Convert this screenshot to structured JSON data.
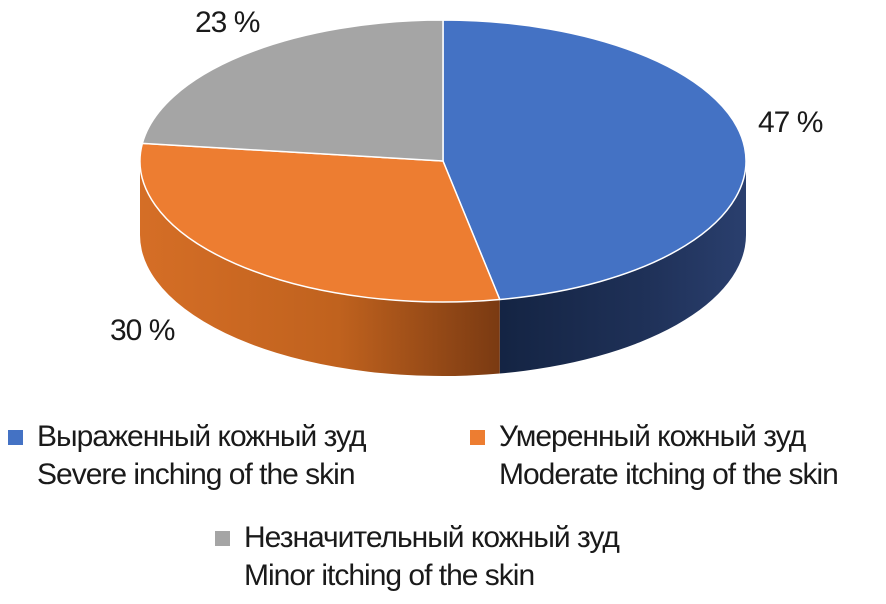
{
  "chart_data": {
    "type": "pie",
    "style": "3d",
    "title": "",
    "series": [
      {
        "name_ru": "Выраженный кожный зуд",
        "name_en": "Severe inching of the skin",
        "value": 47,
        "label": "47 %",
        "color": "#4472C4",
        "side_color": "#1F3158"
      },
      {
        "name_ru": "Умеренный кожный зуд",
        "name_en": "Moderate itching of the skin",
        "value": 30,
        "label": "30 %",
        "color": "#ED7D31",
        "side_color": "#A9531A"
      },
      {
        "name_ru": "Незначительный кожный зуд",
        "name_en": "Minor itching of the skin",
        "value": 23,
        "label": "23 %",
        "color": "#A5A5A5",
        "side_color": "#6E6E6E"
      }
    ],
    "legend_placement": "bottom"
  }
}
